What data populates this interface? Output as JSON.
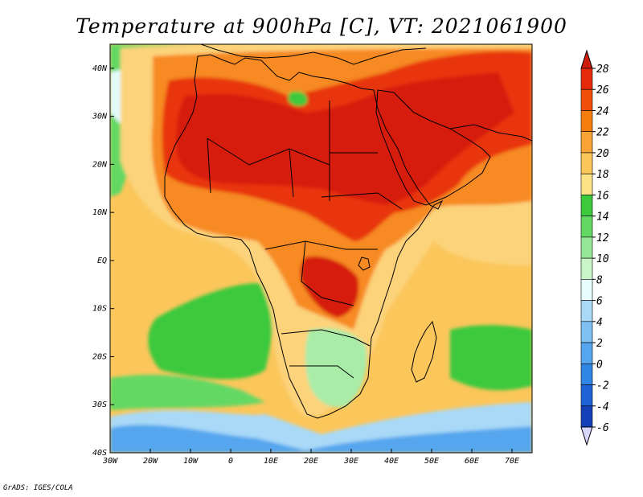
{
  "title": "Temperature at 900hPa [C], VT: 2021061900",
  "credit": "GrADS: IGES/COLA",
  "map": {
    "region": "Africa and Arabian Peninsula",
    "variable": "Temperature",
    "level": "900hPa",
    "units": "C",
    "lon_range": [
      -30,
      75
    ],
    "lat_range": [
      -40,
      45
    ],
    "x_ticks": [
      {
        "lon": -30,
        "label": "30W"
      },
      {
        "lon": -20,
        "label": "20W"
      },
      {
        "lon": -10,
        "label": "10W"
      },
      {
        "lon": 0,
        "label": "0"
      },
      {
        "lon": 10,
        "label": "10E"
      },
      {
        "lon": 20,
        "label": "20E"
      },
      {
        "lon": 30,
        "label": "30E"
      },
      {
        "lon": 40,
        "label": "40E"
      },
      {
        "lon": 50,
        "label": "50E"
      },
      {
        "lon": 60,
        "label": "60E"
      },
      {
        "lon": 70,
        "label": "70E"
      }
    ],
    "y_ticks": [
      {
        "lat": 40,
        "label": "40N"
      },
      {
        "lat": 30,
        "label": "30N"
      },
      {
        "lat": 20,
        "label": "20N"
      },
      {
        "lat": 10,
        "label": "10N"
      },
      {
        "lat": 0,
        "label": "EQ"
      },
      {
        "lat": -10,
        "label": "10S"
      },
      {
        "lat": -20,
        "label": "20S"
      },
      {
        "lat": -30,
        "label": "30S"
      },
      {
        "lat": -40,
        "label": "40S"
      }
    ]
  },
  "colorbar": {
    "levels": [
      "28",
      "26",
      "24",
      "22",
      "20",
      "18",
      "16",
      "14",
      "12",
      "10",
      "8",
      "6",
      "4",
      "2",
      "0",
      "-2",
      "-4",
      "-6"
    ],
    "colors": [
      "#e42a0a",
      "#f0500a",
      "#f77d0f",
      "#f9a434",
      "#fbc65a",
      "#fce385",
      "#3cc93c",
      "#63d863",
      "#96e896",
      "#c9f5c9",
      "#e7fdfd",
      "#a9d9f7",
      "#7fc0f3",
      "#55a6ee",
      "#2f86e5",
      "#1d63d6",
      "#1440b8",
      "#0b1e8a",
      "#0c1470",
      "#ddddff"
    ],
    "top_color": "#d01c0c",
    "bottom_color": "#d8d8ff"
  },
  "palette": {
    "hot": "#d61e08",
    "red": "#e8350a",
    "orange_red": "#f06010",
    "orange": "#f78a20",
    "light_orange": "#fab050",
    "yellow": "#fcd37a",
    "pale_yellow": "#fde8a6",
    "green": "#3cc93c",
    "mid_green": "#63d863",
    "light_green": "#a8eca8",
    "pale_green": "#d2f7d2",
    "cyan": "#e2fbfb",
    "light_blue": "#a9d9f7",
    "blue": "#7fc0f3",
    "deep_blue": "#55a6ee",
    "ocean_base": "#fbc65a"
  }
}
